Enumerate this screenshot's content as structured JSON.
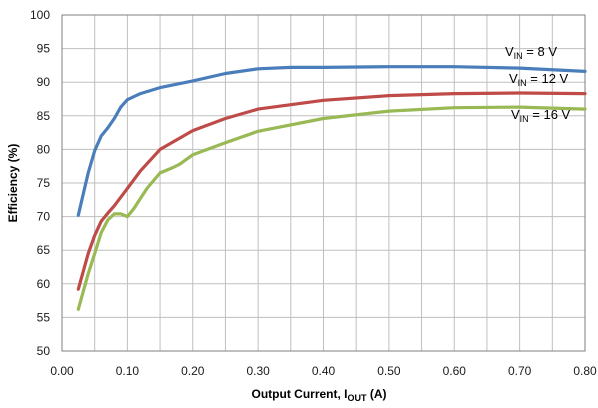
{
  "chart_data": {
    "type": "line",
    "title": "",
    "xlabel": {
      "main": "Output Current, I",
      "sub": "OUT",
      "tail": " (A)"
    },
    "ylabel": "Efficiency (%)",
    "xlim": [
      0,
      0.8
    ],
    "ylim": [
      50,
      100
    ],
    "grid": true,
    "x_ticks": [
      {
        "value": 0.0,
        "label": "0.00"
      },
      {
        "value": 0.1,
        "label": "0.10"
      },
      {
        "value": 0.2,
        "label": "0.20"
      },
      {
        "value": 0.3,
        "label": "0.30"
      },
      {
        "value": 0.4,
        "label": "0.40"
      },
      {
        "value": 0.5,
        "label": "0.50"
      },
      {
        "value": 0.6,
        "label": "0.60"
      },
      {
        "value": 0.7,
        "label": "0.70"
      },
      {
        "value": 0.8,
        "label": "0.80"
      }
    ],
    "x_minor_step": 0.05,
    "y_ticks": [
      {
        "value": 50,
        "label": "50"
      },
      {
        "value": 55,
        "label": "55"
      },
      {
        "value": 60,
        "label": "60"
      },
      {
        "value": 65,
        "label": "65"
      },
      {
        "value": 70,
        "label": "70"
      },
      {
        "value": 75,
        "label": "75"
      },
      {
        "value": 80,
        "label": "80"
      },
      {
        "value": 85,
        "label": "85"
      },
      {
        "value": 90,
        "label": "90"
      },
      {
        "value": 95,
        "label": "95"
      },
      {
        "value": 100,
        "label": "100"
      }
    ],
    "series": [
      {
        "name": {
          "main": "V",
          "sub": "IN",
          "tail": " = 8 V"
        },
        "color": "#4a7ebb",
        "x": [
          0.025,
          0.04,
          0.05,
          0.06,
          0.07,
          0.08,
          0.09,
          0.1,
          0.12,
          0.15,
          0.2,
          0.25,
          0.3,
          0.35,
          0.4,
          0.5,
          0.6,
          0.7,
          0.8
        ],
        "y": [
          70.2,
          76.5,
          79.8,
          82.0,
          83.2,
          84.6,
          86.3,
          87.4,
          88.3,
          89.2,
          90.2,
          91.3,
          92.0,
          92.2,
          92.2,
          92.3,
          92.3,
          92.1,
          91.6
        ]
      },
      {
        "name": {
          "main": "V",
          "sub": "IN",
          "tail": " = 12 V"
        },
        "color": "#be4b48",
        "x": [
          0.025,
          0.04,
          0.05,
          0.06,
          0.07,
          0.08,
          0.1,
          0.12,
          0.15,
          0.2,
          0.25,
          0.3,
          0.4,
          0.5,
          0.6,
          0.7,
          0.8
        ],
        "y": [
          59.2,
          64.5,
          67.2,
          69.3,
          70.5,
          71.6,
          74.2,
          76.8,
          80.0,
          82.8,
          84.6,
          86.0,
          87.3,
          88.0,
          88.3,
          88.4,
          88.3
        ]
      },
      {
        "name": {
          "main": "V",
          "sub": "IN",
          "tail": " = 16 V"
        },
        "color": "#98b954",
        "x": [
          0.025,
          0.04,
          0.05,
          0.06,
          0.07,
          0.08,
          0.09,
          0.1,
          0.11,
          0.13,
          0.15,
          0.17,
          0.18,
          0.2,
          0.25,
          0.3,
          0.4,
          0.5,
          0.6,
          0.7,
          0.8
        ],
        "y": [
          56.2,
          61.5,
          64.5,
          67.6,
          69.5,
          70.4,
          70.4,
          70.0,
          71.2,
          74.2,
          76.5,
          77.3,
          77.8,
          79.2,
          81.0,
          82.7,
          84.6,
          85.7,
          86.2,
          86.3,
          86.0
        ]
      }
    ]
  }
}
